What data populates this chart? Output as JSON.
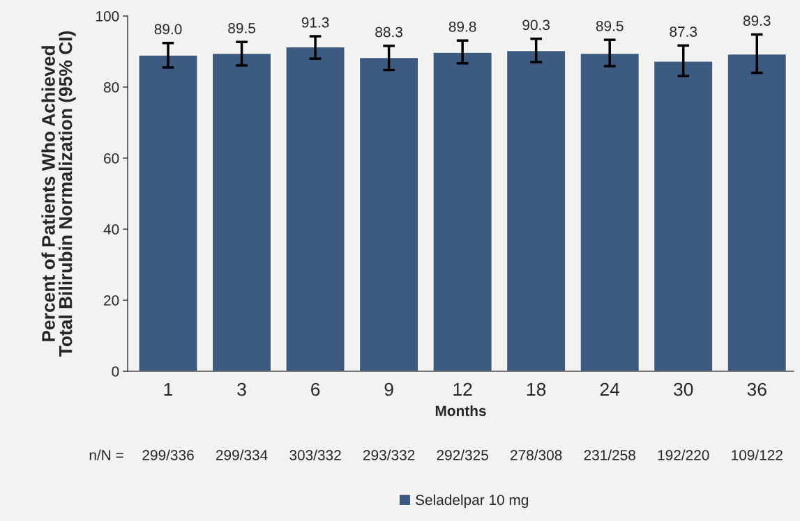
{
  "chart_data": {
    "type": "bar",
    "ylabel": "Percent of Patients Who Achieved\nTotal Bilirubin Normalization (95% CI)",
    "xlabel": "Months",
    "categories": [
      "1",
      "3",
      "6",
      "9",
      "12",
      "18",
      "24",
      "30",
      "36"
    ],
    "series": [
      {
        "name": "Seladelpar 10 mg",
        "color": "#3d5a80",
        "values": [
          89.0,
          89.5,
          91.3,
          88.3,
          89.8,
          90.3,
          89.5,
          87.3,
          89.3
        ],
        "value_labels": [
          "89.0",
          "89.5",
          "91.3",
          "88.3",
          "89.8",
          "90.3",
          "89.5",
          "87.3",
          "89.3"
        ],
        "errors": [
          [
            85.5,
            92.4
          ],
          [
            86.1,
            92.7
          ],
          [
            88.0,
            94.3
          ],
          [
            84.8,
            91.6
          ],
          [
            86.7,
            93.1
          ],
          [
            87.0,
            93.6
          ],
          [
            85.9,
            93.3
          ],
          [
            83.1,
            91.7
          ],
          [
            84.0,
            94.8
          ]
        ]
      }
    ],
    "ylim": [
      0,
      100
    ],
    "yticks": [
      0,
      20,
      40,
      60,
      80,
      100
    ],
    "grid": false,
    "legend": "bottom",
    "annotations": [
      "n/N =",
      "299/336",
      "299/334",
      "303/332",
      "293/332",
      "292/325",
      "278/308",
      "231/258",
      "192/220",
      "109/122"
    ]
  }
}
